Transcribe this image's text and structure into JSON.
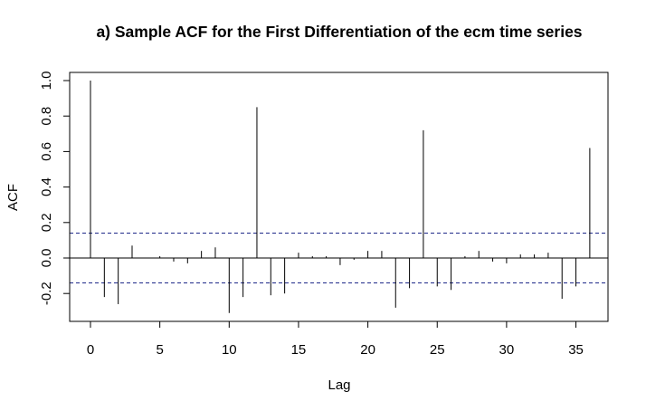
{
  "chart_data": {
    "type": "bar",
    "title": "a) Sample ACF for the First Differentiation of the ecm time series",
    "xlabel": "Lag",
    "ylabel": "ACF",
    "xlim": [
      -1.8,
      37.2
    ],
    "ylim": [
      -0.3,
      1.0
    ],
    "x_ticks": [
      0,
      5,
      10,
      15,
      20,
      25,
      30,
      35
    ],
    "x_tick_labels": [
      "0",
      "5",
      "10",
      "15",
      "20",
      "25",
      "30",
      "35"
    ],
    "y_ticks": [
      -0.2,
      0.0,
      0.2,
      0.4,
      0.6,
      0.8,
      1.0
    ],
    "y_tick_labels": [
      "-0.2",
      "0.0",
      "0.2",
      "0.4",
      "0.6",
      "0.8",
      "1.0"
    ],
    "confidence_bound": 0.14,
    "lags": [
      0,
      1,
      2,
      3,
      4,
      5,
      6,
      7,
      8,
      9,
      10,
      11,
      12,
      13,
      14,
      15,
      16,
      17,
      18,
      19,
      20,
      21,
      22,
      23,
      24,
      25,
      26,
      27,
      28,
      29,
      30,
      31,
      32,
      33,
      34,
      35,
      36
    ],
    "acf": [
      1.0,
      -0.22,
      -0.26,
      0.07,
      0.0,
      0.01,
      -0.02,
      -0.03,
      0.04,
      0.06,
      -0.31,
      -0.22,
      0.85,
      -0.21,
      -0.2,
      0.03,
      0.01,
      0.01,
      -0.04,
      -0.01,
      0.04,
      0.04,
      -0.28,
      -0.17,
      0.72,
      -0.16,
      -0.18,
      0.01,
      0.04,
      -0.02,
      -0.03,
      0.02,
      0.02,
      0.03,
      -0.23,
      -0.16,
      0.62
    ],
    "grid": false
  }
}
